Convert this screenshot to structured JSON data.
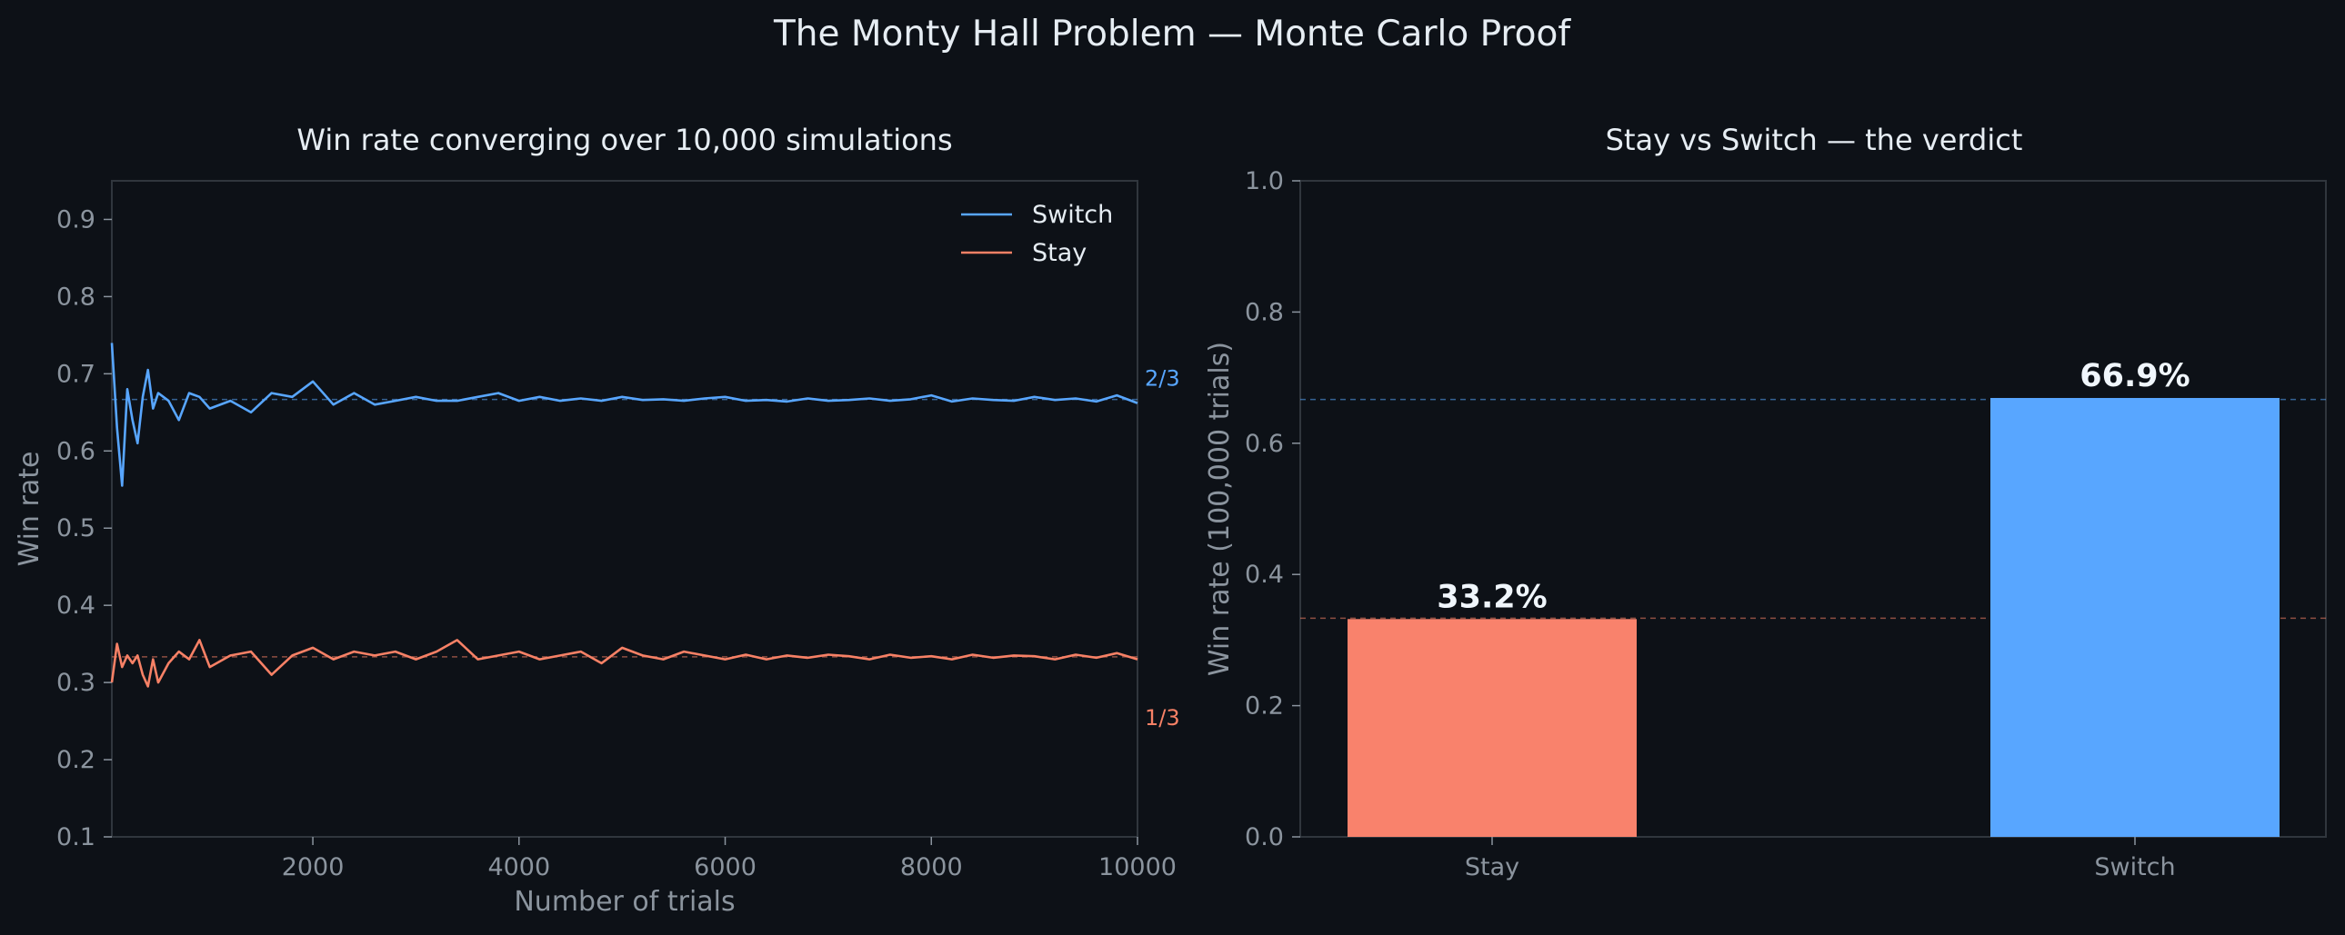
{
  "figure": {
    "title": "The Monty Hall Problem — Monte Carlo Proof",
    "background": "#0d1117",
    "axes_color": "#30363d"
  },
  "chart_data": [
    {
      "type": "line",
      "title": "Win rate converging over 10,000 simulations",
      "xlabel": "Number of trials",
      "ylabel": "Win rate",
      "xlim": [
        50,
        10000
      ],
      "ylim": [
        0.1,
        0.95
      ],
      "xticks": [
        2000,
        4000,
        6000,
        8000,
        10000
      ],
      "yticks": [
        0.1,
        0.2,
        0.3,
        0.4,
        0.5,
        0.6,
        0.7,
        0.8,
        0.9
      ],
      "legend_position": "top-right",
      "reference_lines": [
        {
          "y": 0.6667,
          "label": "2/3",
          "color": "#58a6ff"
        },
        {
          "y": 0.3333,
          "label": "1/3",
          "color": "#f78166"
        }
      ],
      "series": [
        {
          "name": "Switch",
          "color": "#58a6ff",
          "x": [
            50,
            100,
            150,
            200,
            250,
            300,
            350,
            400,
            450,
            500,
            600,
            700,
            800,
            900,
            1000,
            1200,
            1400,
            1600,
            1800,
            2000,
            2200,
            2400,
            2600,
            2800,
            3000,
            3200,
            3400,
            3600,
            3800,
            4000,
            4200,
            4400,
            4600,
            4800,
            5000,
            5200,
            5400,
            5600,
            5800,
            6000,
            6200,
            6400,
            6600,
            6800,
            7000,
            7200,
            7400,
            7600,
            7800,
            8000,
            8200,
            8400,
            8600,
            8800,
            9000,
            9200,
            9400,
            9600,
            9800,
            10000
          ],
          "values": [
            0.74,
            0.63,
            0.555,
            0.68,
            0.64,
            0.61,
            0.67,
            0.705,
            0.655,
            0.675,
            0.665,
            0.64,
            0.675,
            0.67,
            0.655,
            0.665,
            0.65,
            0.675,
            0.67,
            0.69,
            0.66,
            0.675,
            0.66,
            0.665,
            0.67,
            0.665,
            0.665,
            0.67,
            0.675,
            0.665,
            0.67,
            0.665,
            0.668,
            0.665,
            0.67,
            0.666,
            0.667,
            0.665,
            0.668,
            0.67,
            0.665,
            0.666,
            0.664,
            0.668,
            0.665,
            0.666,
            0.668,
            0.665,
            0.667,
            0.672,
            0.664,
            0.668,
            0.666,
            0.665,
            0.67,
            0.666,
            0.668,
            0.664,
            0.672,
            0.662
          ]
        },
        {
          "name": "Stay",
          "color": "#f78166",
          "x": [
            50,
            100,
            150,
            200,
            250,
            300,
            350,
            400,
            450,
            500,
            600,
            700,
            800,
            900,
            1000,
            1200,
            1400,
            1600,
            1800,
            2000,
            2200,
            2400,
            2600,
            2800,
            3000,
            3200,
            3400,
            3600,
            3800,
            4000,
            4200,
            4400,
            4600,
            4800,
            5000,
            5200,
            5400,
            5600,
            5800,
            6000,
            6200,
            6400,
            6600,
            6800,
            7000,
            7200,
            7400,
            7600,
            7800,
            8000,
            8200,
            8400,
            8600,
            8800,
            9000,
            9200,
            9400,
            9600,
            9800,
            10000
          ],
          "values": [
            0.3,
            0.35,
            0.32,
            0.335,
            0.325,
            0.335,
            0.31,
            0.295,
            0.33,
            0.3,
            0.325,
            0.34,
            0.33,
            0.355,
            0.32,
            0.335,
            0.34,
            0.31,
            0.335,
            0.345,
            0.33,
            0.34,
            0.335,
            0.34,
            0.33,
            0.34,
            0.355,
            0.33,
            0.335,
            0.34,
            0.33,
            0.335,
            0.34,
            0.325,
            0.345,
            0.335,
            0.33,
            0.34,
            0.335,
            0.33,
            0.336,
            0.33,
            0.335,
            0.332,
            0.336,
            0.334,
            0.33,
            0.336,
            0.332,
            0.334,
            0.33,
            0.336,
            0.332,
            0.335,
            0.334,
            0.33,
            0.336,
            0.332,
            0.338,
            0.33
          ]
        }
      ]
    },
    {
      "type": "bar",
      "title": "Stay vs Switch — the verdict",
      "xlabel": "",
      "ylabel": "Win rate (100,000 trials)",
      "ylim": [
        0,
        1.0
      ],
      "yticks": [
        0.0,
        0.2,
        0.4,
        0.6,
        0.8,
        1.0
      ],
      "categories": [
        "Stay",
        "Switch"
      ],
      "values": [
        0.332,
        0.669
      ],
      "value_labels": [
        "33.2%",
        "66.9%"
      ],
      "colors": [
        "#f9826c",
        "#58a6ff"
      ],
      "reference_lines": [
        {
          "y": 0.6667,
          "color": "#58a6ff"
        },
        {
          "y": 0.3333,
          "color": "#f78166"
        }
      ]
    }
  ]
}
